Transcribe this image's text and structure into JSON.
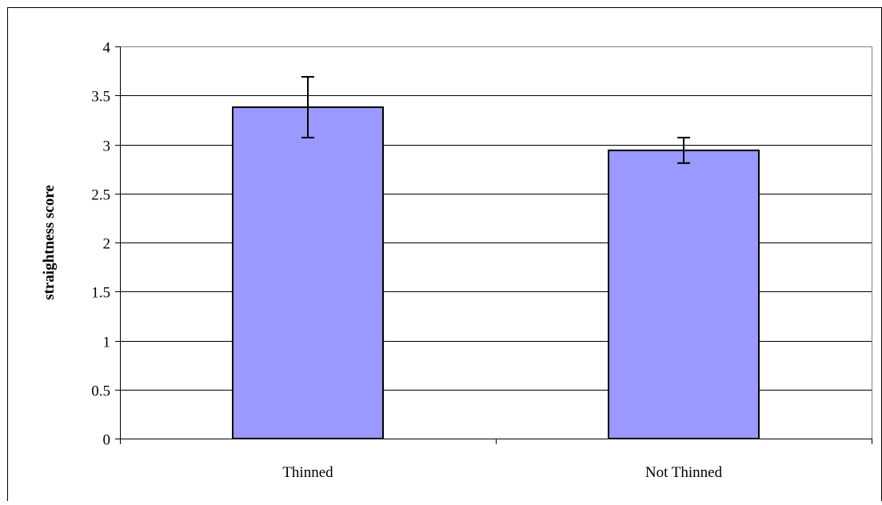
{
  "chart_data": {
    "type": "bar",
    "title": "",
    "xlabel": "",
    "ylabel": "straightness score",
    "categories": [
      "Thinned",
      "Not Thinned"
    ],
    "series": [
      {
        "values": [
          3.38,
          2.94
        ],
        "error": [
          0.31,
          0.13
        ]
      }
    ],
    "ylim": [
      0,
      4
    ],
    "yticks": [
      0,
      0.5,
      1,
      1.5,
      2,
      2.5,
      3,
      3.5,
      4
    ],
    "ytick_labels": [
      "0",
      "0.5",
      "1",
      "1.5",
      "2",
      "2.5",
      "3",
      "3.5",
      "4"
    ],
    "grid": true,
    "legend": "none",
    "colors": {
      "bar_fill": "#9999ff",
      "bar_stroke": "#000000",
      "grid": "#000000",
      "plot_border": "#808080",
      "frame": "#000000"
    }
  }
}
